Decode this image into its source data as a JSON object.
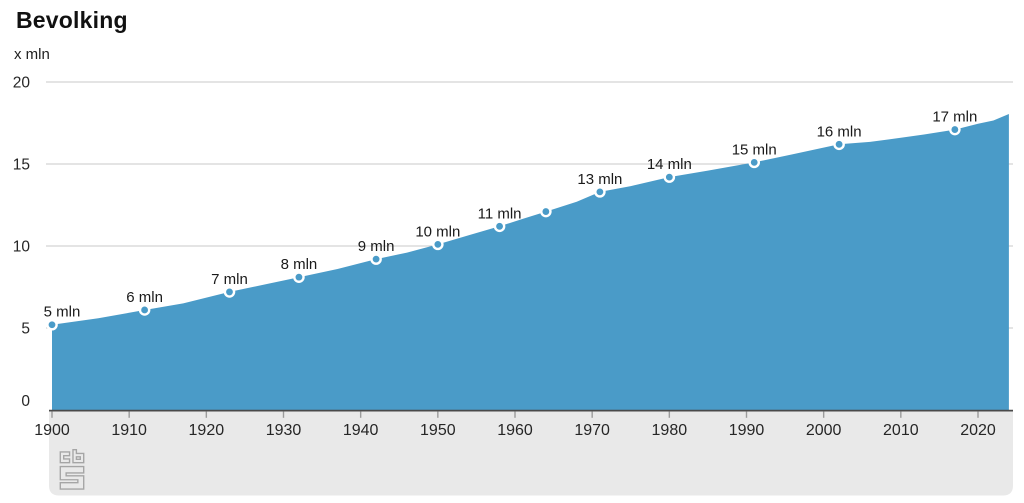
{
  "chart_data": {
    "type": "area",
    "title": "Bevolking",
    "unit_label": "x mln",
    "xlim": [
      1900,
      2024
    ],
    "ylim": [
      0,
      20
    ],
    "x_ticks": [
      1900,
      1910,
      1920,
      1930,
      1940,
      1950,
      1960,
      1970,
      1980,
      1990,
      2000,
      2010,
      2020
    ],
    "y_ticks": [
      0,
      5,
      10,
      15,
      20
    ],
    "grid": "horizontal-only",
    "legend": "none",
    "series": [
      {
        "name": "Bevolking (x mln)",
        "points": [
          [
            1900,
            5.2
          ],
          [
            1906,
            5.6
          ],
          [
            1912,
            6.1
          ],
          [
            1917,
            6.5
          ],
          [
            1923,
            7.2
          ],
          [
            1928,
            7.7
          ],
          [
            1932,
            8.1
          ],
          [
            1937,
            8.6
          ],
          [
            1942,
            9.2
          ],
          [
            1946,
            9.6
          ],
          [
            1950,
            10.1
          ],
          [
            1954,
            10.65
          ],
          [
            1958,
            11.2
          ],
          [
            1961,
            11.65
          ],
          [
            1964,
            12.1
          ],
          [
            1968,
            12.7
          ],
          [
            1971,
            13.3
          ],
          [
            1975,
            13.65
          ],
          [
            1980,
            14.2
          ],
          [
            1985,
            14.6
          ],
          [
            1991,
            15.1
          ],
          [
            1996,
            15.6
          ],
          [
            2002,
            16.2
          ],
          [
            2006,
            16.35
          ],
          [
            2010,
            16.6
          ],
          [
            2013,
            16.8
          ],
          [
            2017,
            17.1
          ],
          [
            2020,
            17.45
          ],
          [
            2022,
            17.65
          ],
          [
            2024,
            18.05
          ]
        ]
      }
    ],
    "milestone_markers": [
      {
        "year": 1900,
        "value": 5.2,
        "label": "5 mln"
      },
      {
        "year": 1912,
        "value": 6.1,
        "label": "6 mln"
      },
      {
        "year": 1923,
        "value": 7.2,
        "label": "7 mln"
      },
      {
        "year": 1932,
        "value": 8.1,
        "label": "8 mln"
      },
      {
        "year": 1942,
        "value": 9.2,
        "label": "9 mln"
      },
      {
        "year": 1950,
        "value": 10.1,
        "label": "10 mln"
      },
      {
        "year": 1958,
        "value": 11.2,
        "label": "11 mln"
      },
      {
        "year": 1964,
        "value": 12.1,
        "label": ""
      },
      {
        "year": 1971,
        "value": 13.3,
        "label": "13 mln"
      },
      {
        "year": 1980,
        "value": 14.2,
        "label": "14 mln"
      },
      {
        "year": 1991,
        "value": 15.1,
        "label": "15 mln"
      },
      {
        "year": 2002,
        "value": 16.2,
        "label": "16 mln"
      },
      {
        "year": 2017,
        "value": 17.1,
        "label": "17 mln"
      }
    ],
    "colors": {
      "area": "#4A9BC8",
      "marker_fill": "#4A9BC8",
      "marker_stroke": "#FFFFFF",
      "gridline": "#C9C9C9",
      "axis_line": "#4A4A4A",
      "tick": "#9B9B9B",
      "label_text": "#1A1A1A",
      "axis_text": "#262626",
      "footer_bg": "#E9E9E9",
      "logo": "#A5A5A5",
      "background": "#FFFFFF"
    },
    "branding": "cbs-logo"
  }
}
